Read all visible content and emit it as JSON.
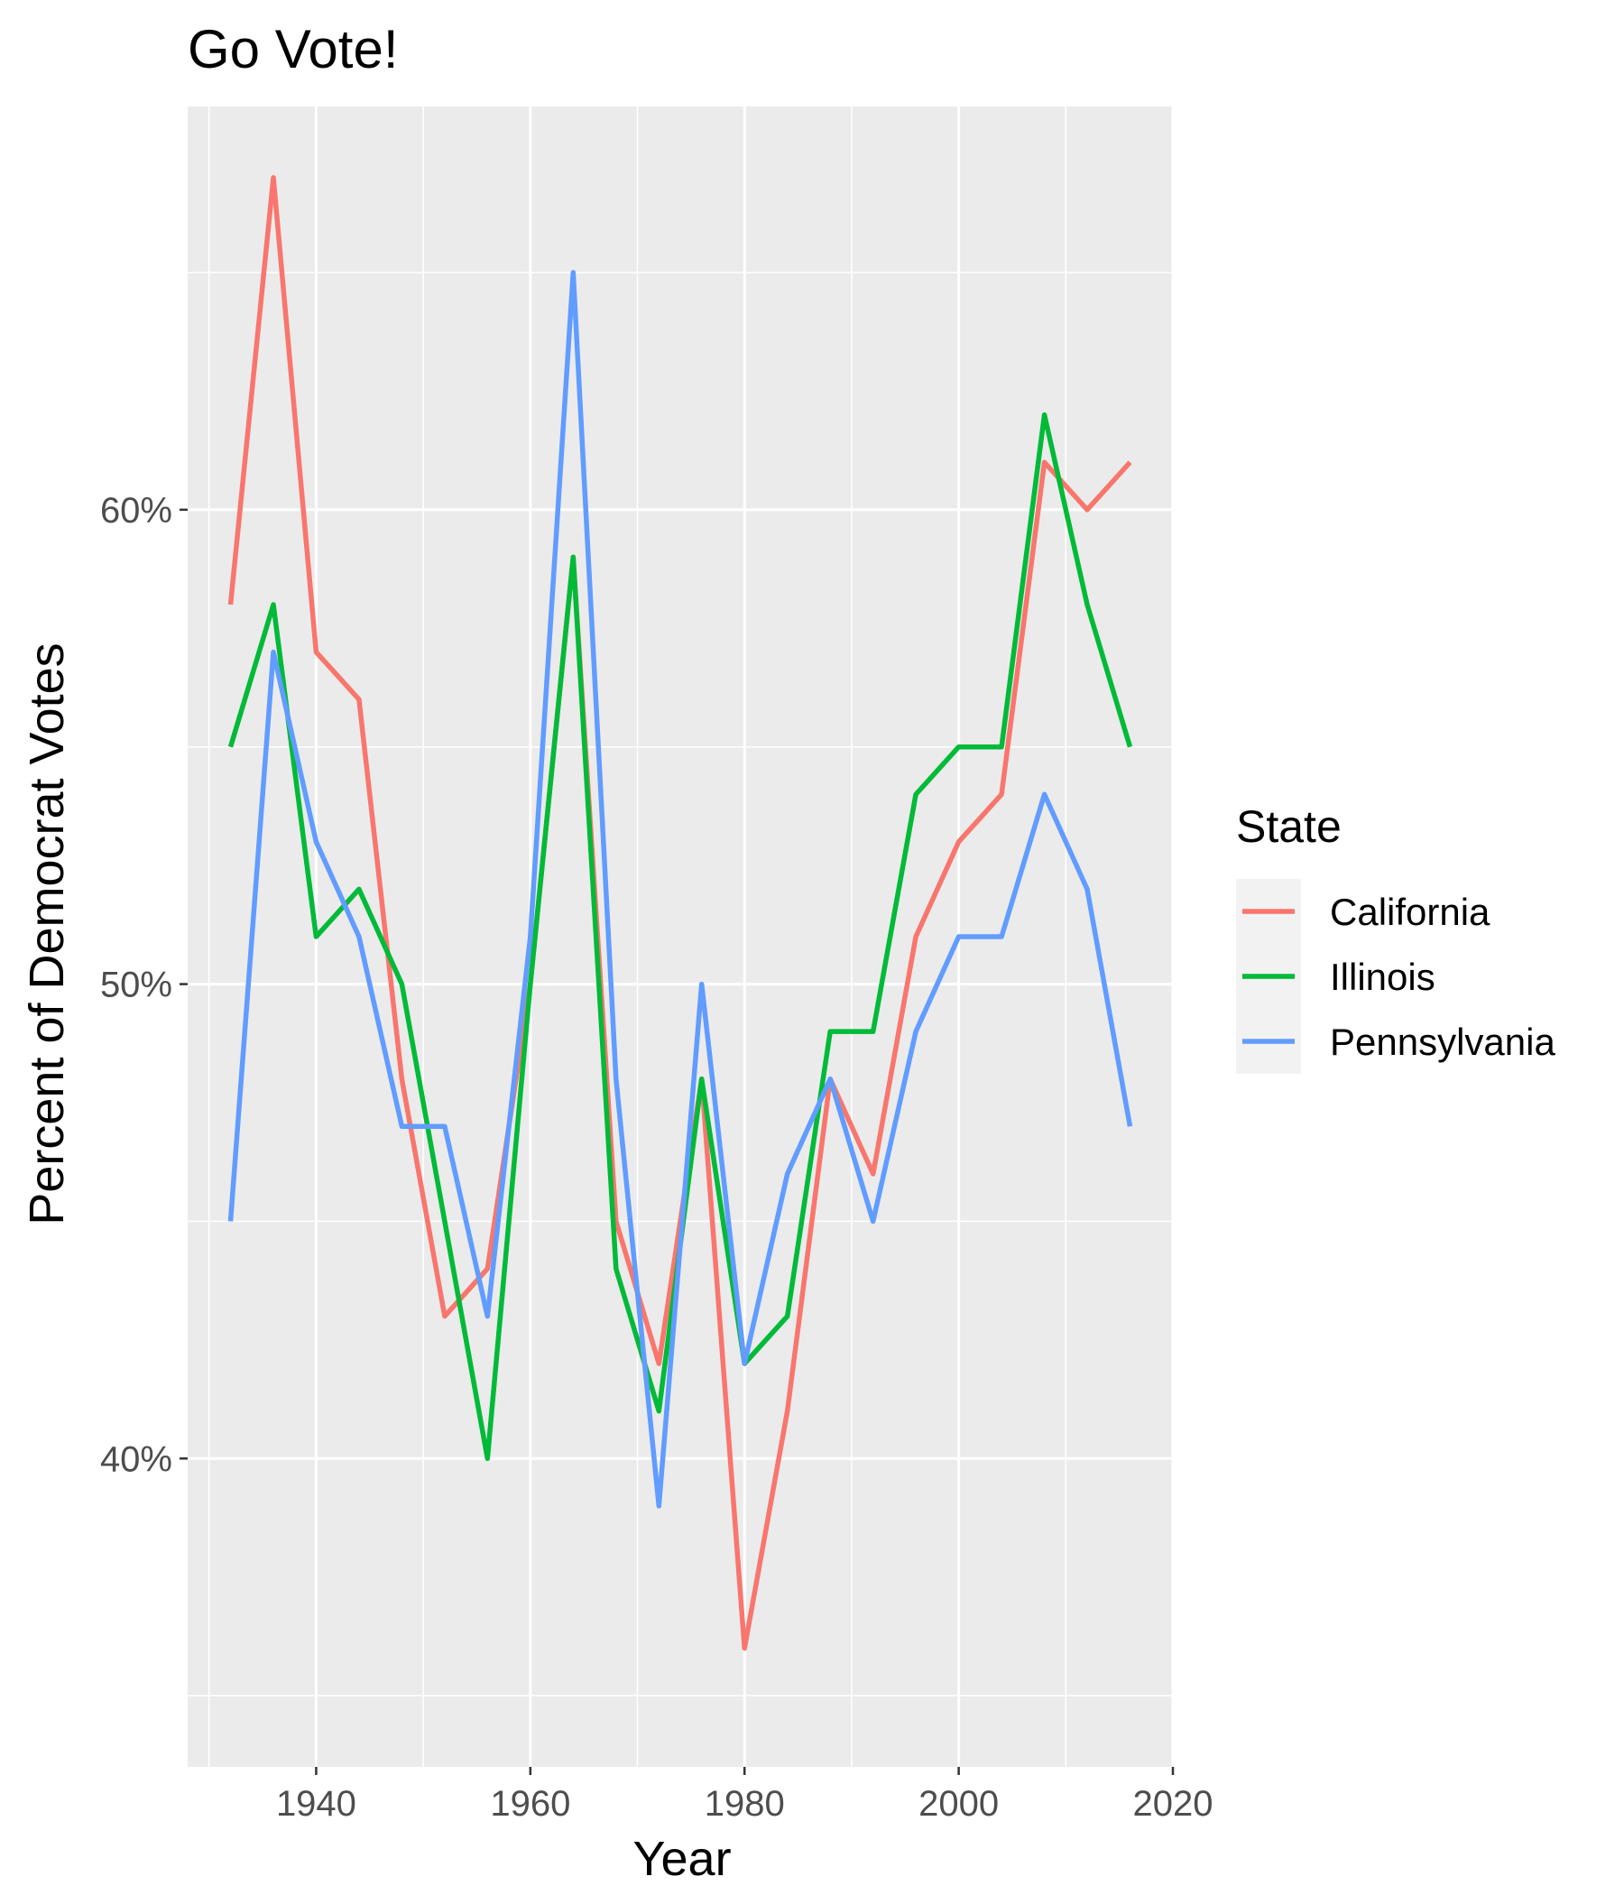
{
  "chart_data": {
    "type": "line",
    "title": "Go Vote!",
    "xlabel": "Year",
    "ylabel": "Percent of Democrat Votes",
    "xlim": [
      1928,
      2020
    ],
    "ylim": [
      0.335,
      0.685
    ],
    "x_ticks": [
      1940,
      1960,
      1980,
      2000,
      2020
    ],
    "x_tick_labels": [
      "1940",
      "1960",
      "1980",
      "2000",
      "2020"
    ],
    "x_minor_ticks": [
      1930,
      1950,
      1970,
      1990,
      2010
    ],
    "y_ticks": [
      0.4,
      0.5,
      0.6
    ],
    "y_tick_labels": [
      "40%",
      "50%",
      "60%"
    ],
    "y_minor_ticks": [
      0.35,
      0.45,
      0.55,
      0.65
    ],
    "grid": true,
    "panel_background": "#EBEBEB",
    "legend": {
      "title": "State",
      "position": "right"
    },
    "x": [
      1932,
      1936,
      1940,
      1944,
      1948,
      1952,
      1956,
      1960,
      1964,
      1968,
      1972,
      1976,
      1980,
      1984,
      1988,
      1992,
      1996,
      2000,
      2004,
      2008,
      2012,
      2016
    ],
    "series": [
      {
        "name": "California",
        "color": "#F8766D",
        "values": [
          0.58,
          0.67,
          0.57,
          0.56,
          0.48,
          0.43,
          0.44,
          0.5,
          0.59,
          0.45,
          0.42,
          0.48,
          0.36,
          0.41,
          0.48,
          0.46,
          0.51,
          0.53,
          0.54,
          0.61,
          0.6,
          0.61
        ]
      },
      {
        "name": "Illinois",
        "color": "#00BA38",
        "values": [
          0.55,
          0.58,
          0.51,
          0.52,
          0.5,
          0.45,
          0.4,
          0.5,
          0.59,
          0.44,
          0.41,
          0.48,
          0.42,
          0.43,
          0.49,
          0.49,
          0.54,
          0.55,
          0.55,
          0.62,
          0.58,
          0.55
        ]
      },
      {
        "name": "Pennsylvania",
        "color": "#619CFF",
        "values": [
          0.45,
          0.57,
          0.53,
          0.51,
          0.47,
          0.47,
          0.43,
          0.51,
          0.65,
          0.48,
          0.39,
          0.5,
          0.42,
          0.46,
          0.48,
          0.45,
          0.49,
          0.51,
          0.51,
          0.54,
          0.52,
          0.47
        ]
      }
    ]
  }
}
